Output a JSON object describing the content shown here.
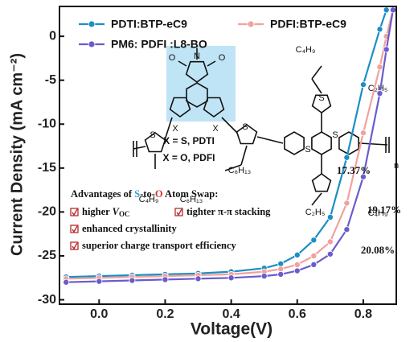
{
  "chart_data": {
    "type": "line",
    "x_label": "Voltage(V)",
    "y_label": "Current Density (mA cm⁻²)",
    "x": [
      -0.1,
      0.0,
      0.1,
      0.2,
      0.3,
      0.4,
      0.5,
      0.55,
      0.6,
      0.65,
      0.7,
      0.75,
      0.8,
      0.85,
      0.87,
      0.89
    ],
    "series": [
      {
        "name": "PDTI:BTP-eC9",
        "color": "#1b8ec6",
        "annotation": "17.37%",
        "values": [
          -27.4,
          -27.3,
          -27.2,
          -27.1,
          -27.0,
          -26.8,
          -26.4,
          -25.9,
          -24.9,
          -23.2,
          -20.6,
          -13.8,
          -5.5,
          0.8,
          3.0,
          null
        ]
      },
      {
        "name": "PDFI:BTP-eC9",
        "color": "#f2a19d",
        "annotation": "19.17%",
        "values": [
          -27.6,
          -27.5,
          -27.4,
          -27.3,
          -27.2,
          -27.1,
          -26.8,
          -26.5,
          -26.0,
          -25.0,
          -23.4,
          -19.0,
          -11.0,
          -3.5,
          0.0,
          3.0
        ]
      },
      {
        "name": "PM6: PDFI :L8-BO",
        "color": "#6a5ccc",
        "annotation": "20.08%",
        "values": [
          -28.0,
          -27.9,
          -27.8,
          -27.7,
          -27.6,
          -27.5,
          -27.3,
          -27.1,
          -26.7,
          -26.0,
          -24.8,
          -22.0,
          -16.0,
          -6.5,
          -1.5,
          3.0
        ]
      }
    ],
    "xlim": [
      -0.12,
      0.9
    ],
    "ylim": [
      -30.5,
      3.4
    ],
    "xticks": [
      {
        "value": 0.0,
        "label": "0.0"
      },
      {
        "value": 0.2,
        "label": "0.2"
      },
      {
        "value": 0.4,
        "label": "0.4"
      },
      {
        "value": 0.6,
        "label": "0.6"
      },
      {
        "value": 0.8,
        "label": "0.8"
      }
    ],
    "yticks": [
      -30,
      -25,
      -20,
      -15,
      -10,
      -5,
      0
    ],
    "legend": "upper left",
    "inset": {
      "title": [
        "Advantages of ",
        "S",
        "-to-",
        "O",
        " Atom Swap:"
      ],
      "items": [
        [
          "higher ",
          "V",
          "OC"
        ],
        [
          "tighter π-π stacking"
        ],
        [
          "enhanced crystallinity"
        ],
        [
          "superior charge  transport efficiency"
        ]
      ],
      "structure_labels": [
        "N",
        "O",
        "O",
        "X",
        "X",
        "S",
        "S",
        "S",
        "S",
        "S",
        "X = S, PDTI",
        "X = O, PDFI",
        "n",
        "C₄H₉",
        "C₂H₅",
        "C₄H₉",
        "C₆H₁₃",
        "C₆H₁₃",
        "C₂H₅",
        "C₄H₉"
      ]
    }
  }
}
